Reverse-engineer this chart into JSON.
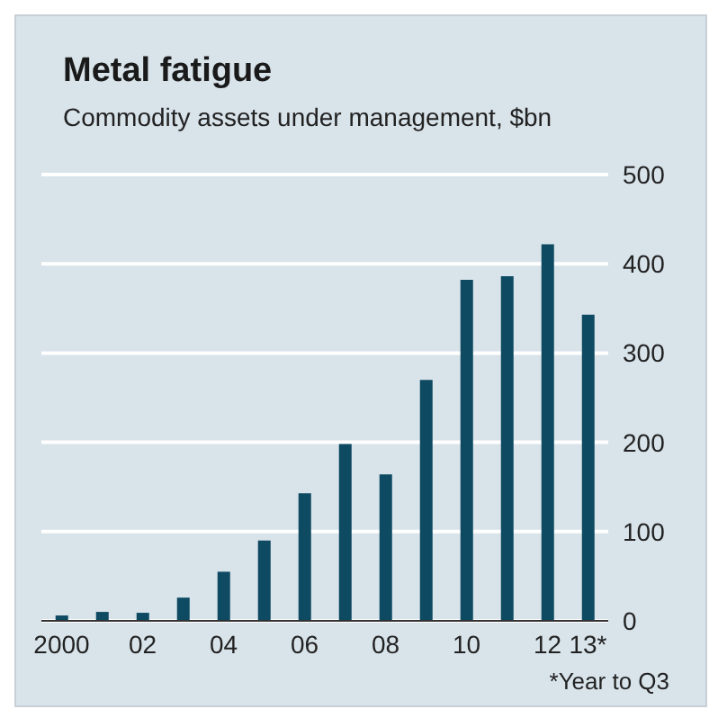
{
  "chart_data": {
    "type": "bar",
    "title": "Metal fatigue",
    "subtitle": "Commodity assets under management, $bn",
    "categories": [
      "2000",
      null,
      "02",
      null,
      "04",
      null,
      "06",
      null,
      "08",
      null,
      "10",
      null,
      "12",
      "13*"
    ],
    "values": [
      6,
      10,
      9,
      26,
      55,
      90,
      143,
      198,
      164,
      270,
      382,
      386,
      422,
      343
    ],
    "color": "#0e4a62",
    "ylim": [
      0,
      500
    ],
    "yticks": [
      0,
      100,
      200,
      300,
      400,
      500
    ],
    "grid": "y",
    "annotations": [
      "*Year to Q3"
    ]
  }
}
